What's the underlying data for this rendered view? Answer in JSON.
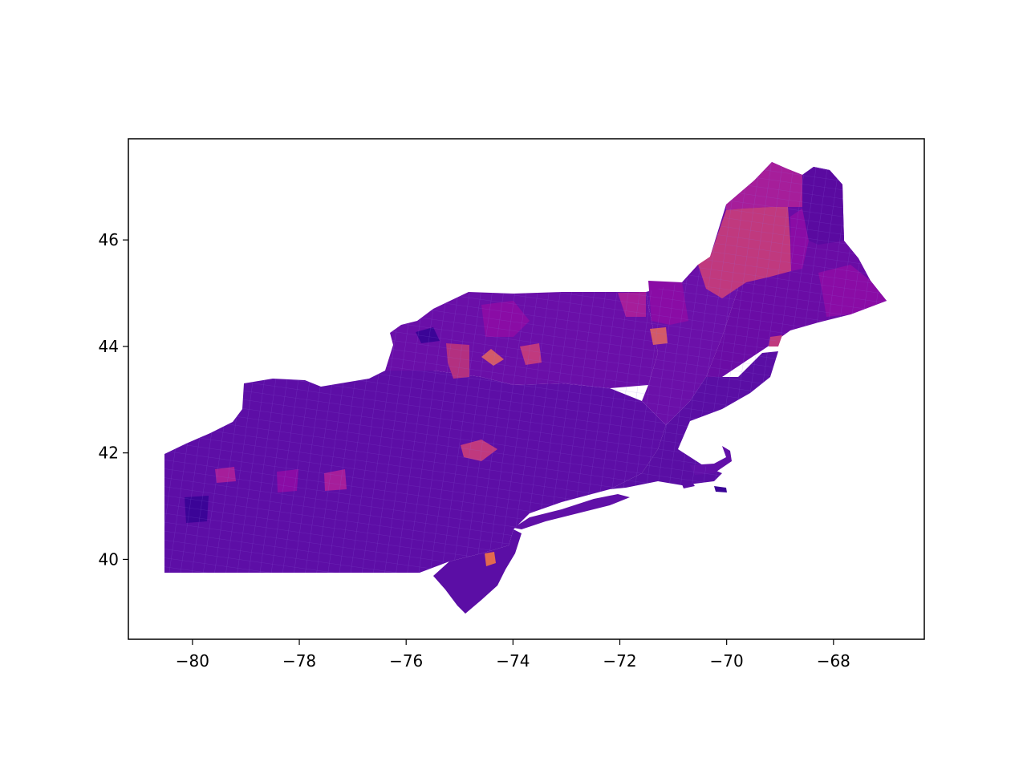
{
  "chart_data": {
    "type": "choropleth",
    "title": "",
    "xlabel": "",
    "ylabel": "",
    "xlim": [
      -81.2,
      -66.3
    ],
    "ylim": [
      38.5,
      47.9
    ],
    "x_ticks": [
      -80,
      -78,
      -76,
      -74,
      -72,
      -70,
      -68
    ],
    "y_ticks": [
      40,
      42,
      44,
      46
    ],
    "x_tick_labels": [
      "−80",
      "−78",
      "−76",
      "−74",
      "−72",
      "−70",
      "−68"
    ],
    "y_tick_labels": [
      "40",
      "42",
      "44",
      "46"
    ],
    "grid": false,
    "legend": "none",
    "colormap": "plasma",
    "colors": {
      "base": "#5d0ea6",
      "dark": "#3b0497",
      "mid": "#8a0ca5",
      "magenta": "#a61e9a",
      "pink": "#c0397e",
      "orange": "#e36a4f",
      "border": "#7d5ad8"
    }
  }
}
